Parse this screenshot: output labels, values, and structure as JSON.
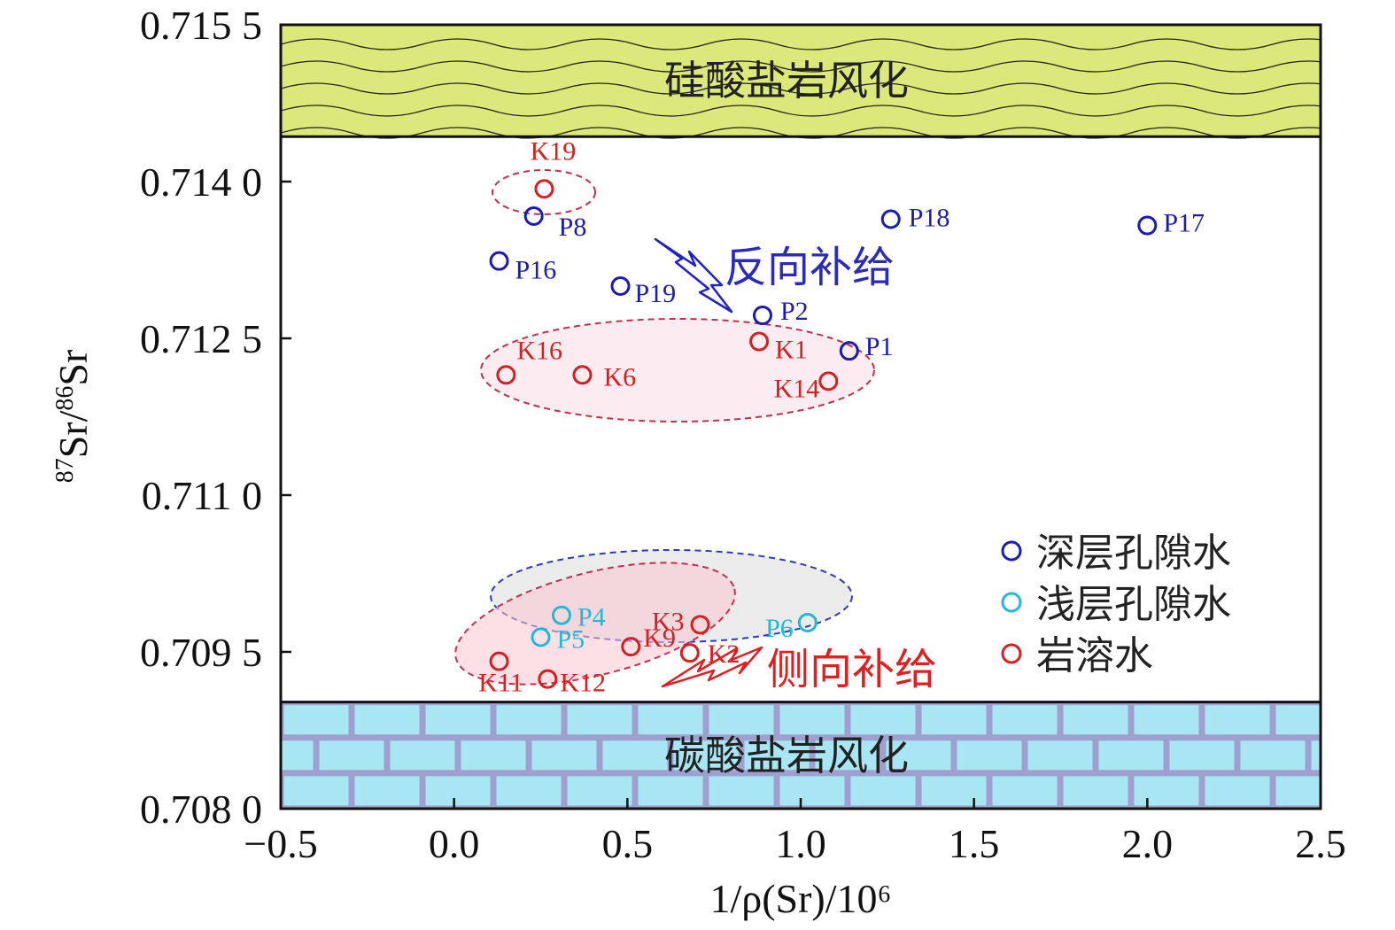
{
  "chart_data": {
    "type": "scatter",
    "xlabel": "1/ρ(Sr)/10⁶",
    "ylabel": "87Sr/86Sr",
    "xlim": [
      -0.5,
      2.5
    ],
    "ylim": [
      0.708,
      0.7155
    ],
    "x_ticks": [
      -0.5,
      0.0,
      0.5,
      1.0,
      1.5,
      2.0,
      2.5
    ],
    "x_tick_labels": [
      "−0.5",
      "0.0",
      "0.5",
      "1.0",
      "1.5",
      "2.0",
      "2.5"
    ],
    "y_ticks": [
      0.708,
      0.7095,
      0.711,
      0.7125,
      0.714,
      0.7155
    ],
    "y_tick_labels": [
      "0.708 0",
      "0.709 5",
      "0.711 0",
      "0.712 5",
      "0.714 0",
      "0.715 5"
    ],
    "grid": false,
    "legend_position": "bottom-right",
    "series": [
      {
        "name": "深层孔隙水",
        "color": "#1b1bb3",
        "points": [
          {
            "label": "P8",
            "x": 0.23,
            "y": 0.71367
          },
          {
            "label": "P16",
            "x": 0.13,
            "y": 0.71324
          },
          {
            "label": "P19",
            "x": 0.48,
            "y": 0.713
          },
          {
            "label": "P2",
            "x": 0.89,
            "y": 0.71272
          },
          {
            "label": "P1",
            "x": 1.14,
            "y": 0.71238
          },
          {
            "label": "P18",
            "x": 1.26,
            "y": 0.71364
          },
          {
            "label": "P17",
            "x": 2.0,
            "y": 0.71358
          }
        ]
      },
      {
        "name": "浅层孔隙水",
        "color": "#22b8d8",
        "points": [
          {
            "label": "P4",
            "x": 0.31,
            "y": 0.70985
          },
          {
            "label": "P5",
            "x": 0.25,
            "y": 0.70964
          },
          {
            "label": "P6",
            "x": 1.02,
            "y": 0.70978
          }
        ]
      },
      {
        "name": "岩溶水",
        "color": "#d42020",
        "points": [
          {
            "label": "K19",
            "x": 0.26,
            "y": 0.71393
          },
          {
            "label": "K1",
            "x": 0.88,
            "y": 0.71247
          },
          {
            "label": "K16",
            "x": 0.15,
            "y": 0.71215
          },
          {
            "label": "K6",
            "x": 0.37,
            "y": 0.71215
          },
          {
            "label": "K14",
            "x": 1.08,
            "y": 0.71209
          },
          {
            "label": "K3",
            "x": 0.71,
            "y": 0.70976
          },
          {
            "label": "K9",
            "x": 0.51,
            "y": 0.70955
          },
          {
            "label": "K2",
            "x": 0.68,
            "y": 0.70949
          },
          {
            "label": "K11",
            "x": 0.13,
            "y": 0.70941
          },
          {
            "label": "K12",
            "x": 0.27,
            "y": 0.70924
          }
        ]
      }
    ],
    "regions": {
      "top_band": {
        "label": "硅酸盐岩风化",
        "y_from": 0.71443,
        "y_to": 0.7155,
        "color": "#dde87a"
      },
      "bottom_band": {
        "label": "碳酸盐岩风化",
        "y_from": 0.708,
        "y_to": 0.70902,
        "color": "#a9e6f4"
      }
    },
    "annotations": {
      "reverse": {
        "text": "反向补给",
        "color": "#2b2bb8"
      },
      "lateral": {
        "text": "侧向补给",
        "color": "#e02020"
      }
    }
  }
}
